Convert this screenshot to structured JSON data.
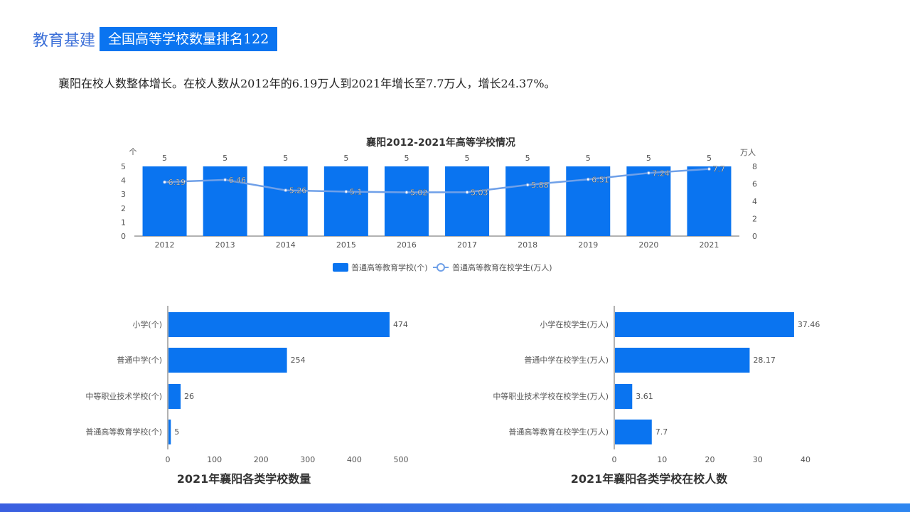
{
  "header": {
    "section": "教育基建",
    "tag": "全国高等学校数量排名122"
  },
  "description": "襄阳在校人数整体增长。在校人数从2012年的6.19万人到2021年增长至7.7万人，增长24.37%。",
  "colors": {
    "bar": "#0a74f0",
    "line": "#6fa0e8"
  },
  "chart_data": [
    {
      "type": "bar+line",
      "title": "襄阳2012-2021年高等学校情况",
      "categories": [
        "2012",
        "2013",
        "2014",
        "2015",
        "2016",
        "2017",
        "2018",
        "2019",
        "2020",
        "2021"
      ],
      "left_unit": "个",
      "right_unit": "万人",
      "ylim_left": [
        0,
        5
      ],
      "ylim_right": [
        0,
        8
      ],
      "left_ticks": [
        "0",
        "1",
        "2",
        "3",
        "4",
        "5"
      ],
      "right_ticks": [
        "0",
        "2",
        "4",
        "6",
        "8"
      ],
      "series": [
        {
          "name": "普通高等教育学校(个)",
          "type": "bar",
          "values": [
            5,
            5,
            5,
            5,
            5,
            5,
            5,
            5,
            5,
            5
          ]
        },
        {
          "name": "普通高等教育在校学生(万人)",
          "type": "line",
          "values": [
            6.19,
            6.46,
            5.26,
            5.1,
            5.02,
            5.03,
            5.88,
            6.51,
            7.24,
            7.7
          ]
        }
      ],
      "legend": "bottom"
    },
    {
      "type": "bar",
      "orientation": "horizontal",
      "title": "2021年襄阳各类学校数量",
      "categories": [
        "小学(个)",
        "普通中学(个)",
        "中等职业技术学校(个)",
        "普通高等教育学校(个)"
      ],
      "values": [
        474,
        254,
        26,
        5
      ],
      "xlim": [
        0,
        500
      ],
      "ticks": [
        "0",
        "100",
        "200",
        "300",
        "400",
        "500"
      ]
    },
    {
      "type": "bar",
      "orientation": "horizontal",
      "title": "2021年襄阳各类学校在校人数",
      "categories": [
        "小学在校学生(万人)",
        "普通中学在校学生(万人)",
        "中等职业技术学校在校学生(万人)",
        "普通高等教育在校学生(万人)"
      ],
      "values": [
        37.46,
        28.17,
        3.61,
        7.7
      ],
      "xlim": [
        0,
        40
      ],
      "ticks": [
        "0",
        "10",
        "20",
        "30",
        "40"
      ]
    }
  ]
}
